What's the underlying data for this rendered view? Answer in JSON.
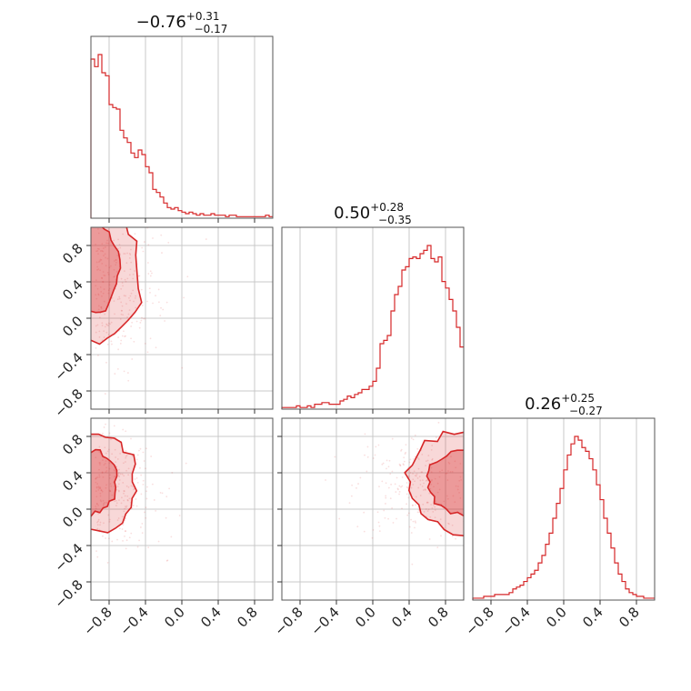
{
  "chart_data": {
    "type": "corner",
    "color": "#d62728",
    "axis_range": [
      -1.0,
      1.0
    ],
    "ticks": [
      -0.8,
      -0.4,
      0.0,
      0.4,
      0.8
    ],
    "tick_labels": [
      "−0.8",
      "−0.4",
      "0.0",
      "0.4",
      "0.8"
    ],
    "grid": true,
    "parameters": [
      {
        "title": {
          "median": "−0.76",
          "upper": "+0.31",
          "lower": "−0.17"
        },
        "hist": {
          "bin_start": -1.0,
          "bin_width": 0.04,
          "counts": [
            105,
            100,
            108,
            96,
            94,
            75,
            73,
            72,
            58,
            53,
            50,
            43,
            40,
            45,
            42,
            34,
            30,
            19,
            17,
            14,
            10,
            7,
            6,
            7,
            5,
            4,
            3,
            4,
            3,
            2,
            3,
            2,
            2,
            3,
            2,
            2,
            2,
            1,
            2,
            2,
            1,
            1,
            1,
            1,
            1,
            1,
            1,
            1,
            2,
            1
          ]
        }
      },
      {
        "title": {
          "median": "0.50",
          "upper": "+0.28",
          "lower": "−0.35"
        },
        "hist": {
          "bin_start": -1.0,
          "bin_width": 0.04,
          "counts": [
            1,
            1,
            1,
            1,
            2,
            1,
            1,
            2,
            1,
            3,
            3,
            4,
            4,
            3,
            3,
            3,
            5,
            6,
            8,
            7,
            9,
            10,
            12,
            12,
            14,
            17,
            25,
            40,
            42,
            45,
            60,
            70,
            75,
            85,
            87,
            92,
            93,
            92,
            95,
            97,
            100,
            92,
            90,
            93,
            78,
            74,
            67,
            60,
            50,
            38
          ]
        }
      },
      {
        "title": {
          "median": "0.26",
          "upper": "+0.25",
          "lower": "−0.27"
        },
        "hist": {
          "bin_start": -1.0,
          "bin_width": 0.04,
          "counts": [
            1,
            1,
            1,
            2,
            2,
            2,
            3,
            3,
            3,
            3,
            4,
            6,
            7,
            8,
            10,
            12,
            14,
            16,
            20,
            24,
            30,
            36,
            44,
            52,
            60,
            70,
            78,
            84,
            88,
            86,
            82,
            80,
            76,
            70,
            62,
            54,
            44,
            36,
            28,
            20,
            14,
            10,
            6,
            4,
            3,
            2,
            2,
            1,
            1,
            1
          ]
        }
      }
    ],
    "pairs": [
      {
        "row": 1,
        "col": 0,
        "x_param": 0,
        "y_param": 1
      },
      {
        "row": 2,
        "col": 0,
        "x_param": 0,
        "y_param": 2
      },
      {
        "row": 2,
        "col": 1,
        "x_param": 1,
        "y_param": 2
      }
    ]
  }
}
